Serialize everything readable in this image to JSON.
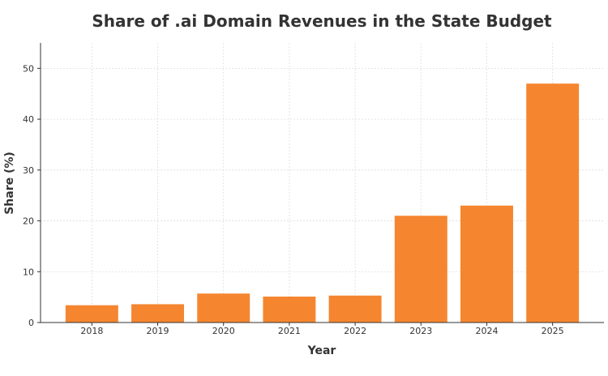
{
  "chart_data": {
    "type": "bar",
    "title": "Share of .ai Domain Revenues in the State Budget",
    "xlabel": "Year",
    "ylabel": "Share (%)",
    "categories": [
      "2018",
      "2019",
      "2020",
      "2021",
      "2022",
      "2023",
      "2024",
      "2025"
    ],
    "values": [
      3.4,
      3.6,
      5.7,
      5.1,
      5.3,
      21,
      23,
      47
    ],
    "ylim": [
      0,
      55
    ],
    "yticks": [
      0,
      10,
      20,
      30,
      40,
      50
    ],
    "grid": true,
    "bar_color": "#f5862f"
  }
}
